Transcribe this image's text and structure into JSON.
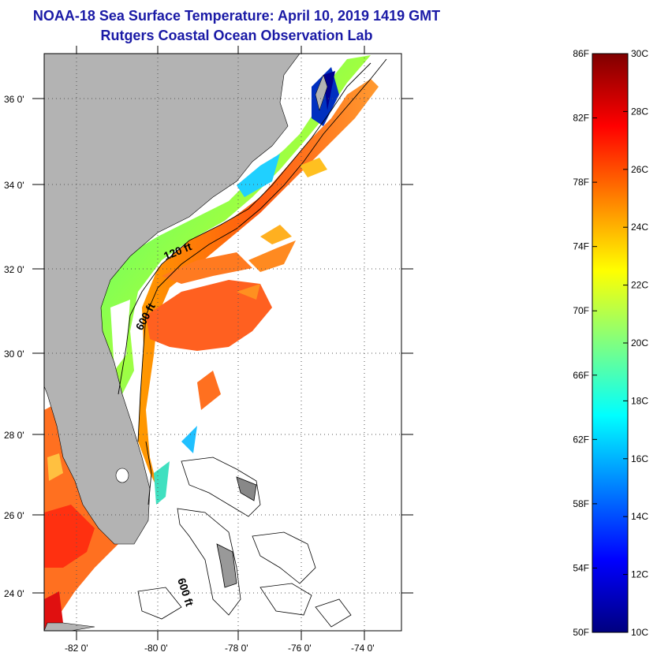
{
  "title_line1": "NOAA-18 Sea Surface Temperature:  April 10, 2019 1419 GMT",
  "title_line2": "Rutgers Coastal Ocean Observation Lab",
  "map": {
    "lon_range": [
      -83,
      -73
    ],
    "lat_range": [
      23,
      37
    ],
    "lat_ticks": [
      "36 0'",
      "34 0'",
      "32 0'",
      "30 0'",
      "28 0'",
      "26 0'",
      "24 0'"
    ],
    "lat_tick_values": [
      36,
      34,
      32,
      30,
      28,
      26,
      24
    ],
    "lon_ticks": [
      "-82 0'",
      "-80 0'",
      "-78 0'",
      "-76 0'",
      "-74 0'"
    ],
    "lon_tick_values": [
      -82,
      -80,
      -78,
      -76,
      -74
    ],
    "contour_labels": [
      "120 ft",
      "600 ft",
      "600 ft"
    ],
    "colors": {
      "land": "#b3b3b3",
      "ocean_missing": "#ffffff",
      "frame": "#000000"
    }
  },
  "colorbar": {
    "f_labels": [
      "86F",
      "82F",
      "78F",
      "74F",
      "70F",
      "66F",
      "62F",
      "58F",
      "54F",
      "50F"
    ],
    "c_labels": [
      "30C",
      "28C",
      "26C",
      "24C",
      "22C",
      "20C",
      "18C",
      "16C",
      "14C",
      "12C",
      "10C"
    ],
    "range_c": [
      10,
      30
    ],
    "range_f": [
      50,
      86
    ],
    "stops": [
      "#00007f",
      "#0000ff",
      "#0080ff",
      "#00ffff",
      "#80ff80",
      "#ffff00",
      "#ff8000",
      "#ff0000",
      "#7f0000"
    ]
  }
}
